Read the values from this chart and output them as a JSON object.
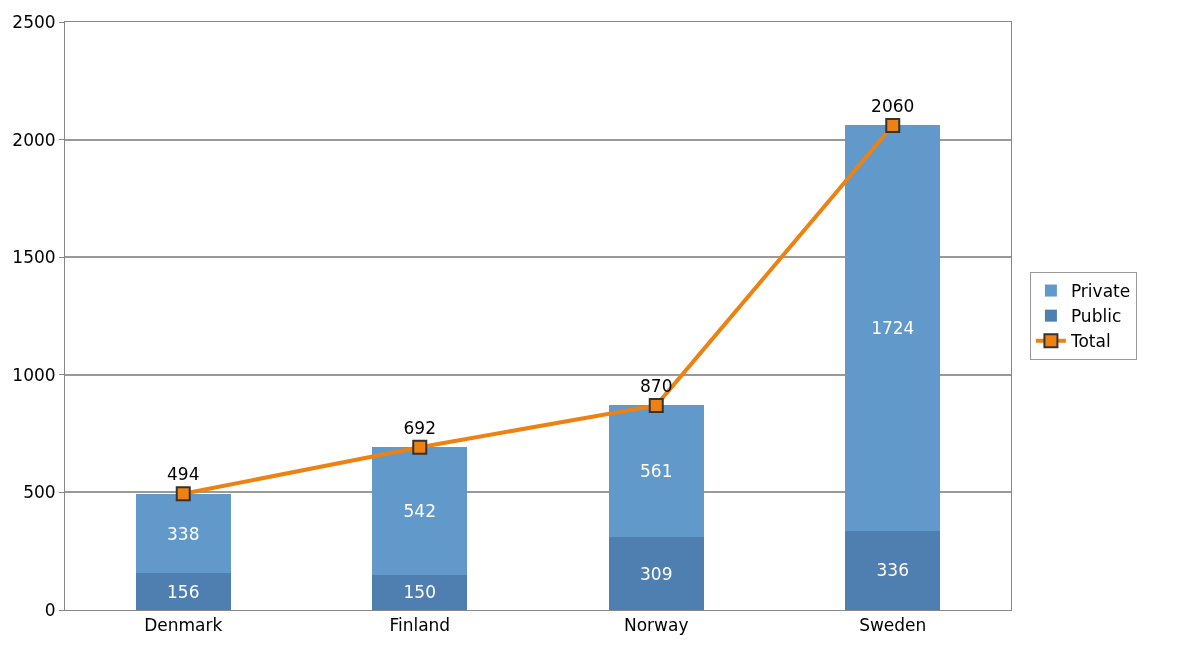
{
  "chart_data": {
    "type": "bar",
    "categories": [
      "Denmark",
      "Finland",
      "Norway",
      "Sweden"
    ],
    "series": [
      {
        "name": "Public",
        "color": "#4f7fb0",
        "values": [
          156,
          150,
          309,
          336
        ]
      },
      {
        "name": "Private",
        "color": "#6199cb",
        "values": [
          338,
          542,
          561,
          1724
        ]
      },
      {
        "name": "Total",
        "type": "line",
        "color": "#ed8212",
        "marker": "square",
        "values": [
          494,
          692,
          870,
          2060
        ]
      }
    ],
    "stacked": true,
    "data_labels": true,
    "ylim": [
      0,
      2500
    ],
    "yticks": [
      0,
      500,
      1000,
      1500,
      2000,
      2500
    ],
    "grid": "y",
    "legend": "right"
  }
}
